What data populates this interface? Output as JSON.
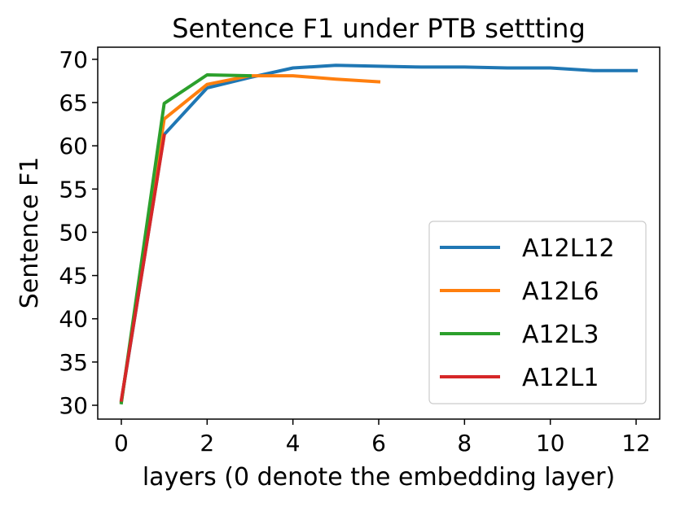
{
  "chart_data": {
    "type": "line",
    "title": "Sentence F1 under PTB settting",
    "xlabel": "layers (0 denote the embedding layer)",
    "ylabel": "Sentence F1",
    "xlim": [
      -0.55,
      12.55
    ],
    "ylim": [
      28.4,
      71.4
    ],
    "xticks": [
      0,
      2,
      4,
      6,
      8,
      10,
      12
    ],
    "yticks": [
      30,
      35,
      40,
      45,
      50,
      55,
      60,
      65,
      70
    ],
    "grid": false,
    "legend_position": "lower-right",
    "series": [
      {
        "name": "A12L12",
        "color": "#1f77b4",
        "x": [
          0,
          1,
          2,
          3,
          4,
          5,
          6,
          7,
          8,
          9,
          10,
          11,
          12
        ],
        "values": [
          30.5,
          61.3,
          66.7,
          67.9,
          69.0,
          69.3,
          69.2,
          69.1,
          69.1,
          69.0,
          69.0,
          68.7,
          68.7
        ]
      },
      {
        "name": "A12L6",
        "color": "#ff7f0e",
        "x": [
          0,
          1,
          2,
          3,
          4,
          5,
          6
        ],
        "values": [
          30.4,
          63.1,
          67.1,
          68.1,
          68.1,
          67.7,
          67.4
        ]
      },
      {
        "name": "A12L3",
        "color": "#2ca02c",
        "x": [
          0,
          1,
          2,
          3
        ],
        "values": [
          30.3,
          64.9,
          68.2,
          68.1
        ]
      },
      {
        "name": "A12L1",
        "color": "#d62728",
        "x": [
          0,
          1
        ],
        "values": [
          30.6,
          61.2
        ]
      }
    ]
  }
}
